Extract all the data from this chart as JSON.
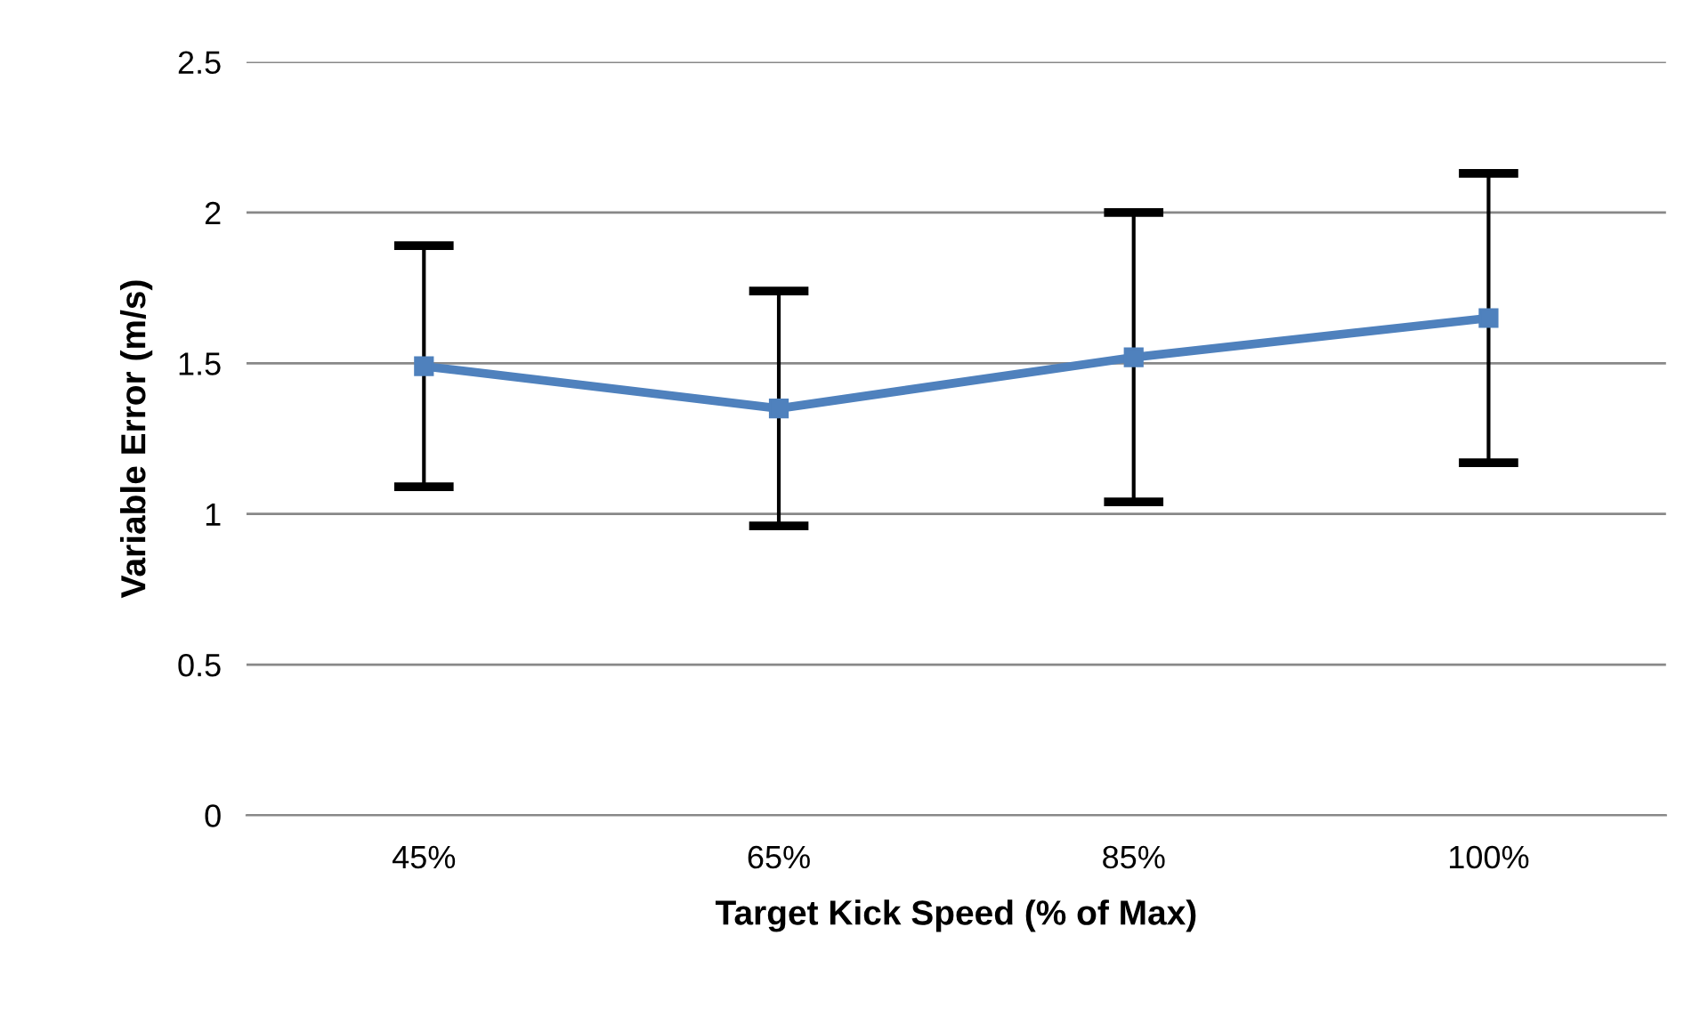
{
  "chart_data": {
    "type": "line",
    "xlabel": "Target Kick Speed (% of Max)",
    "ylabel": "Variable Error (m/s)",
    "categories": [
      "45%",
      "65%",
      "85%",
      "100%"
    ],
    "series": [
      {
        "color": "#4f81bd",
        "values": [
          1.49,
          1.35,
          1.52,
          1.65
        ],
        "errors": [
          0.4,
          0.39,
          0.48,
          0.48
        ]
      }
    ],
    "ylim": [
      0,
      2.5
    ],
    "yticks": [
      0,
      0.5,
      1,
      1.5,
      2,
      2.5
    ],
    "grid": "y",
    "marker": "square",
    "line_style": "solid",
    "legend": false
  }
}
